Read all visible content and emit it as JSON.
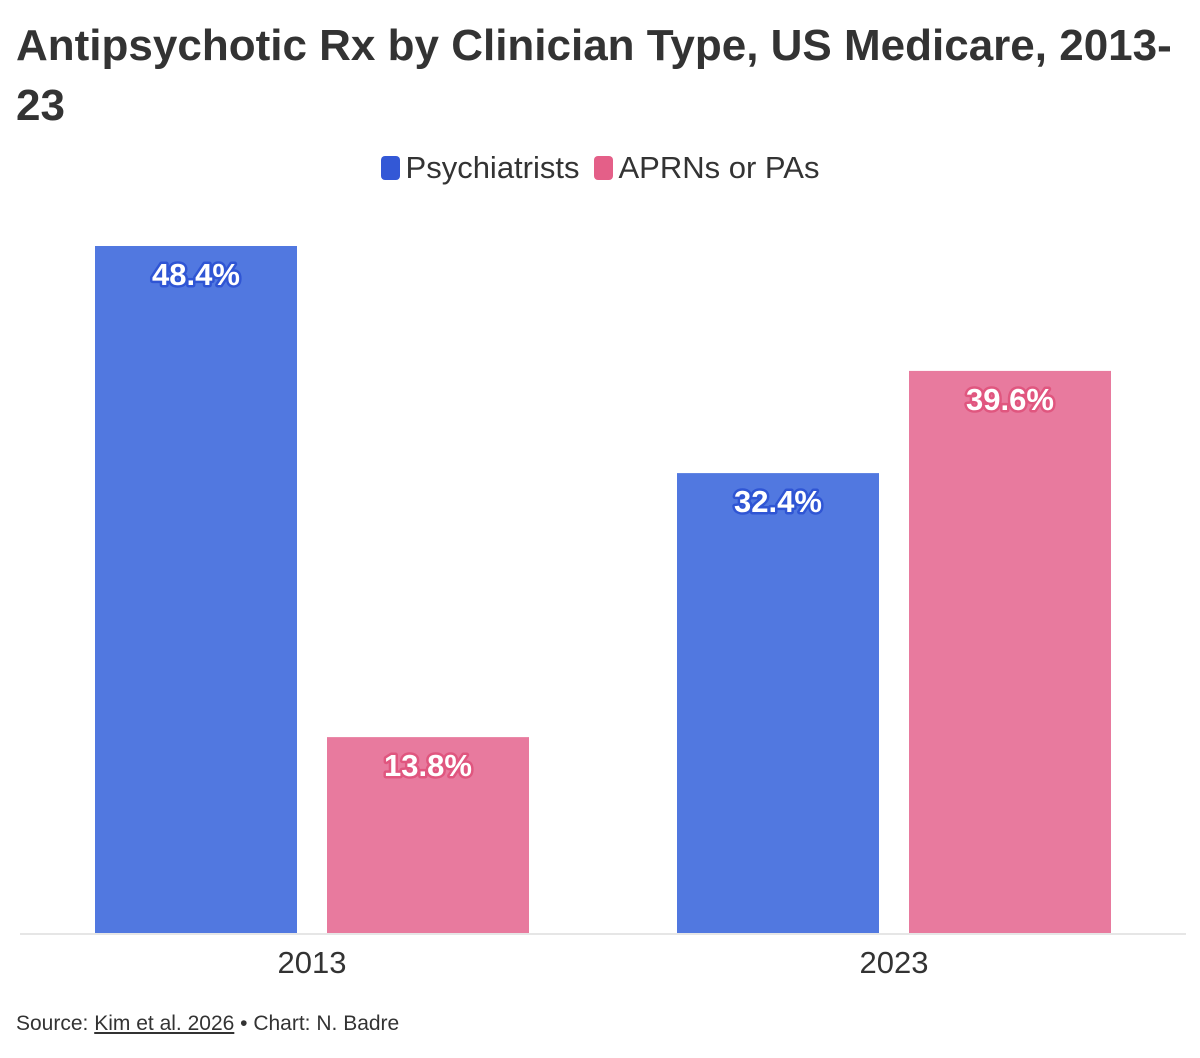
{
  "chart_data": {
    "type": "bar",
    "title": "Antipsychotic Rx by Clinician Type, US Medicare, 2013-23",
    "categories": [
      "2013",
      "2023"
    ],
    "series": [
      {
        "name": "Psychiatrists",
        "values": [
          48.4,
          32.4
        ],
        "labels": [
          "48.4%",
          "32.4%"
        ],
        "color": "#5178e0",
        "label_outline": "#2f55d4"
      },
      {
        "name": "APRNs or PAs",
        "values": [
          13.8,
          39.6
        ],
        "labels": [
          "13.8%",
          "39.6%"
        ],
        "color": "#e87a9e",
        "label_outline": "#e0567f"
      }
    ],
    "legend_swatch_colors": [
      "#3358d6",
      "#e45f88"
    ],
    "ylim": [
      0,
      48.4
    ],
    "grid": false,
    "legend_position": "top-center",
    "axis_line_color": "#e6e6e6"
  },
  "footer": {
    "source_prefix": "Source: ",
    "source_link": "Kim et al. 2026",
    "credit": " • Chart: N. Badre"
  }
}
